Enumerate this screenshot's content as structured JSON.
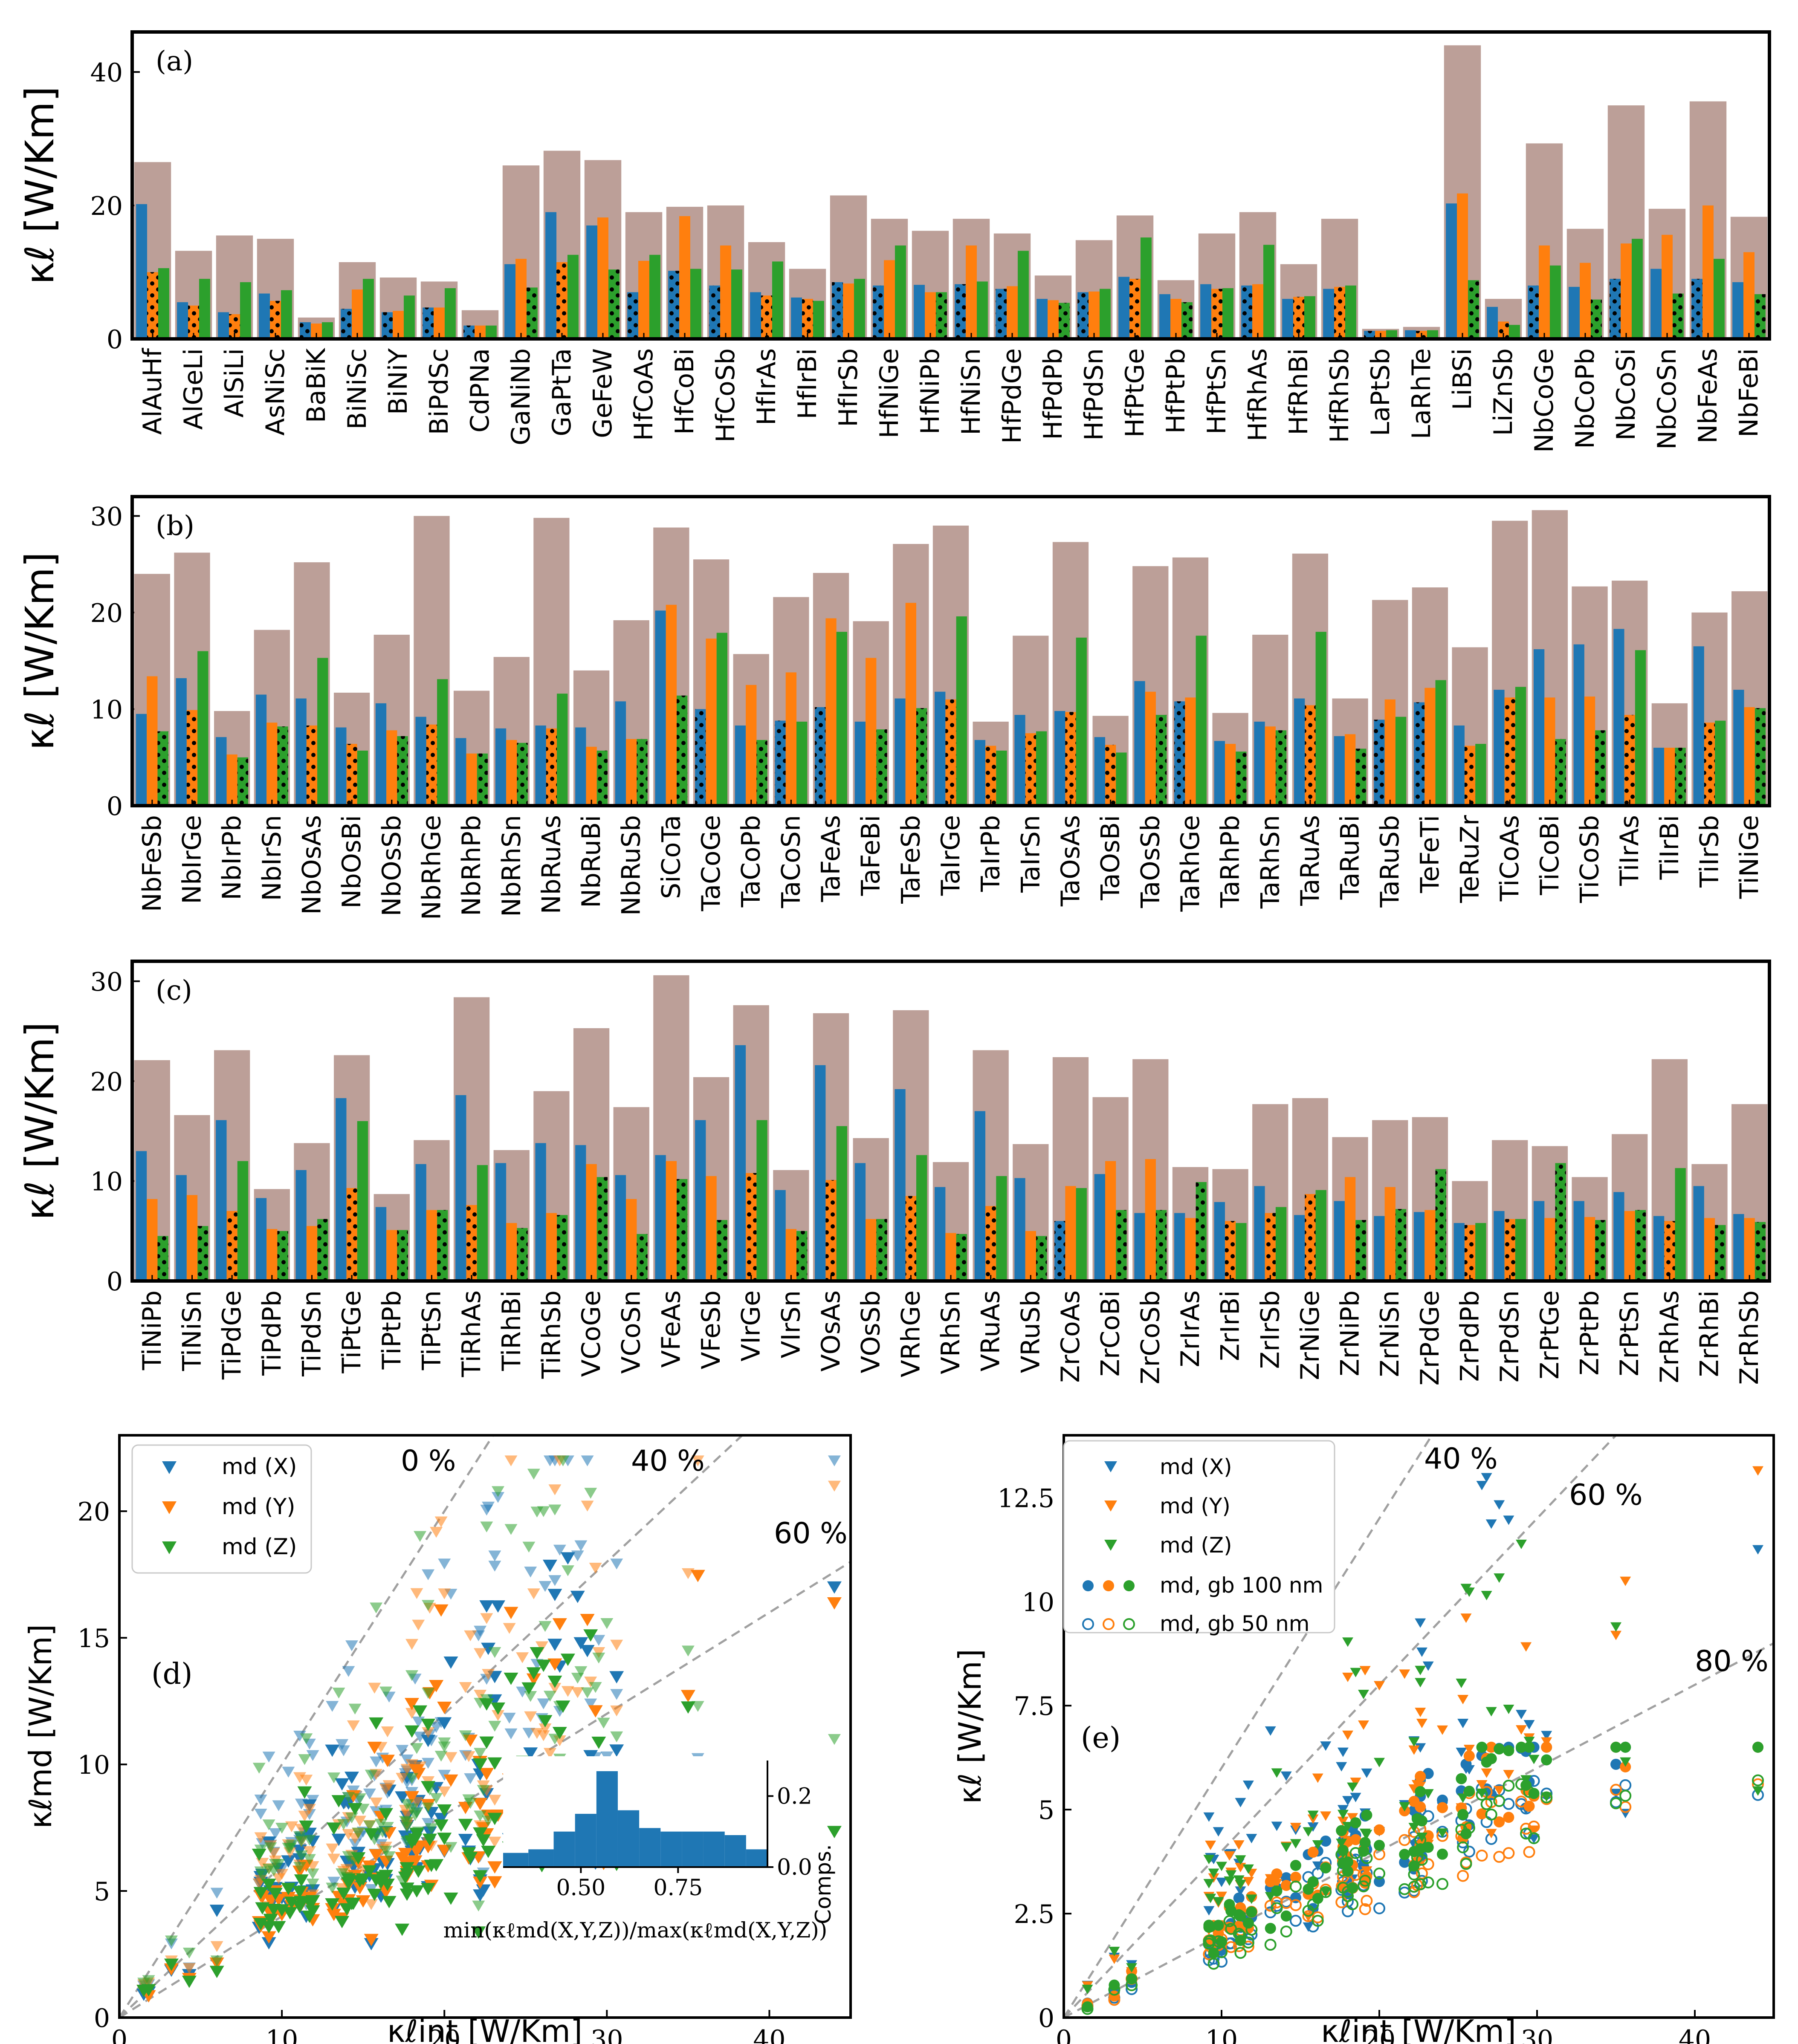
{
  "colors": {
    "total": "#bc9f98",
    "x": "#1f77b4",
    "y": "#ff7f0e",
    "z": "#2ca02c",
    "dash": "#a0a0a0",
    "axis": "#000000"
  },
  "chart_data": [
    {
      "type": "bar",
      "panel": "(a)",
      "ylabel": "κℓ [W/Km]",
      "ylim": [
        0,
        46
      ],
      "yticks": [
        0,
        20,
        40
      ],
      "series_names": [
        "κℓ int",
        "X",
        "Y",
        "Z"
      ],
      "categories": [
        "AlAuHf",
        "AlGeLi",
        "AlSiLi",
        "AsNiSc",
        "BaBiK",
        "BiNiSc",
        "BiNiY",
        "BiPdSc",
        "CdPNa",
        "GaNiNb",
        "GaPtTa",
        "GeFeW",
        "HfCoAs",
        "HfCoBi",
        "HfCoSb",
        "HfIrAs",
        "HfIrBi",
        "HfIrSb",
        "HfNiGe",
        "HfNiPb",
        "HfNiSn",
        "HfPdGe",
        "HfPdPb",
        "HfPdSn",
        "HfPtGe",
        "HfPtPb",
        "HfPtSn",
        "HfRhAs",
        "HfRhBi",
        "HfRhSb",
        "LaPtSb",
        "LaRhTe",
        "LiBSi",
        "LiZnSb",
        "NbCoGe",
        "NbCoPb",
        "NbCoSi",
        "NbCoSn",
        "NbFeAs",
        "NbFeBi"
      ],
      "total": [
        26.5,
        13.2,
        15.5,
        15.0,
        3.2,
        11.5,
        9.2,
        8.6,
        4.3,
        26.0,
        28.2,
        26.8,
        19.0,
        19.8,
        20.0,
        14.5,
        10.5,
        21.5,
        18.0,
        16.2,
        18.0,
        15.8,
        9.5,
        14.8,
        18.5,
        8.8,
        15.8,
        19.0,
        11.2,
        18.0,
        1.5,
        1.8,
        44.0,
        6.0,
        29.3,
        16.5,
        35.0,
        19.5,
        35.6,
        18.3
      ],
      "x": [
        20.2,
        5.5,
        4.0,
        6.8,
        2.5,
        4.5,
        4.0,
        4.7,
        2.0,
        11.2,
        19.0,
        17.0,
        7.0,
        10.2,
        8.0,
        7.0,
        6.2,
        8.5,
        8.0,
        8.1,
        8.2,
        7.5,
        6.0,
        7.0,
        9.3,
        6.7,
        8.2,
        8.0,
        6.0,
        7.5,
        1.2,
        1.3,
        20.3,
        4.8,
        8.0,
        7.8,
        9.0,
        10.5,
        9.0,
        8.5
      ],
      "y": [
        10.0,
        5.0,
        3.7,
        5.7,
        2.3,
        7.4,
        4.2,
        4.7,
        2.0,
        12.0,
        11.5,
        18.2,
        11.7,
        18.4,
        14.0,
        6.5,
        6.0,
        8.3,
        11.8,
        7.0,
        14.0,
        7.9,
        5.8,
        7.1,
        9.0,
        6.0,
        7.5,
        8.2,
        6.3,
        7.8,
        1.2,
        1.2,
        21.8,
        2.6,
        14.0,
        11.4,
        14.3,
        15.6,
        20.0,
        13.0
      ],
      "z": [
        10.6,
        9.0,
        8.5,
        7.3,
        2.5,
        9.0,
        6.5,
        7.6,
        2.0,
        7.7,
        12.6,
        10.4,
        12.6,
        10.5,
        10.4,
        11.6,
        5.7,
        9.0,
        14.0,
        7.0,
        8.6,
        13.2,
        5.4,
        7.5,
        15.2,
        5.5,
        7.6,
        14.1,
        6.4,
        8.0,
        1.3,
        1.3,
        8.8,
        2.1,
        11.0,
        5.9,
        15.0,
        6.8,
        12.0,
        6.7
      ],
      "dotted": [
        "y",
        "y",
        "y",
        "y",
        "x",
        "x",
        "x",
        "x",
        "x",
        "z",
        "y",
        "z",
        "x",
        "x",
        "x",
        "y",
        "y",
        "x",
        "x",
        "z",
        "x",
        "x",
        "z",
        "x",
        "y",
        "z",
        "y",
        "x",
        "y",
        "y",
        "x",
        "y",
        "z",
        "y",
        "x",
        "z",
        "x",
        "z",
        "x",
        "z"
      ]
    },
    {
      "type": "bar",
      "panel": "(b)",
      "ylabel": "κℓ [W/Km]",
      "ylim": [
        0,
        32
      ],
      "yticks": [
        0,
        10,
        20,
        30
      ],
      "series_names": [
        "κℓ int",
        "X",
        "Y",
        "Z"
      ],
      "categories": [
        "NbFeSb",
        "NbIrGe",
        "NbIrPb",
        "NbIrSn",
        "NbOsAs",
        "NbOsBi",
        "NbOsSb",
        "NbRhGe",
        "NbRhPb",
        "NbRhSn",
        "NbRuAs",
        "NbRuBi",
        "NbRuSb",
        "SiCoTa",
        "TaCoGe",
        "TaCoPb",
        "TaCoSn",
        "TaFeAs",
        "TaFeBi",
        "TaFeSb",
        "TaIrGe",
        "TaIrPb",
        "TaIrSn",
        "TaOsAs",
        "TaOsBi",
        "TaOsSb",
        "TaRhGe",
        "TaRhPb",
        "TaRhSn",
        "TaRuAs",
        "TaRuBi",
        "TaRuSb",
        "TeFeTi",
        "TeRuZr",
        "TiCoAs",
        "TiCoBi",
        "TiCoSb",
        "TiIrAs",
        "TiIrBi",
        "TiIrSb",
        "TiNiGe"
      ],
      "total": [
        24.0,
        26.2,
        9.8,
        18.2,
        25.2,
        11.7,
        17.7,
        30.0,
        11.9,
        15.4,
        29.8,
        14.0,
        19.2,
        28.8,
        25.5,
        15.7,
        21.6,
        24.1,
        19.1,
        27.1,
        29.0,
        8.7,
        17.6,
        27.3,
        9.3,
        24.8,
        25.7,
        9.6,
        17.7,
        26.1,
        11.1,
        21.3,
        22.6,
        16.4,
        29.5,
        30.6,
        22.7,
        23.3,
        10.6,
        20.0,
        22.2
      ],
      "x": [
        9.5,
        13.2,
        7.1,
        11.5,
        11.1,
        8.1,
        10.6,
        9.2,
        7.0,
        8.0,
        8.3,
        8.1,
        10.8,
        20.2,
        10.0,
        8.3,
        8.8,
        10.2,
        8.7,
        11.1,
        11.8,
        6.8,
        9.4,
        9.8,
        7.1,
        12.9,
        10.8,
        6.7,
        8.7,
        11.1,
        7.2,
        8.9,
        10.7,
        8.3,
        12.0,
        16.2,
        16.7,
        18.3,
        6.0,
        16.5,
        12.0
      ],
      "y": [
        13.4,
        9.9,
        5.3,
        8.6,
        8.3,
        6.4,
        7.8,
        8.4,
        5.4,
        6.8,
        8.0,
        6.1,
        6.9,
        20.8,
        17.3,
        12.5,
        13.8,
        19.4,
        15.3,
        21.0,
        11.0,
        6.2,
        7.5,
        9.7,
        6.3,
        11.8,
        11.2,
        6.4,
        8.2,
        10.4,
        7.4,
        11.0,
        12.2,
        6.2,
        11.2,
        11.2,
        11.3,
        9.4,
        6.0,
        8.6,
        10.2
      ],
      "z": [
        7.7,
        16.0,
        5.0,
        8.2,
        15.3,
        5.7,
        7.2,
        13.1,
        5.4,
        6.5,
        11.6,
        5.7,
        6.9,
        11.4,
        17.9,
        6.8,
        8.7,
        18.0,
        7.9,
        10.1,
        19.6,
        5.7,
        7.7,
        17.4,
        5.5,
        9.4,
        17.6,
        5.6,
        7.8,
        18.0,
        5.9,
        9.2,
        13.0,
        6.4,
        12.3,
        6.9,
        7.8,
        16.1,
        6.0,
        8.8,
        10.1
      ],
      "dotted": [
        "z",
        "y",
        "z",
        "z",
        "y",
        "y",
        "z",
        "y",
        "z",
        "z",
        "y",
        "z",
        "z",
        "z",
        "x",
        "z",
        "x",
        "x",
        "z",
        "z",
        "y",
        "y",
        "y",
        "y",
        "y",
        "z",
        "x",
        "z",
        "z",
        "y",
        "z",
        "x",
        "x",
        "y",
        "y",
        "z",
        "z",
        "y",
        "z",
        "y",
        "z"
      ]
    },
    {
      "type": "bar",
      "panel": "(c)",
      "ylabel": "κℓ [W/Km]",
      "ylim": [
        0,
        32
      ],
      "yticks": [
        0,
        10,
        20,
        30
      ],
      "series_names": [
        "κℓ int",
        "X",
        "Y",
        "Z"
      ],
      "categories": [
        "TiNiPb",
        "TiNiSn",
        "TiPdGe",
        "TiPdPb",
        "TiPdSn",
        "TiPtGe",
        "TiPtPb",
        "TiPtSn",
        "TiRhAs",
        "TiRhBi",
        "TiRhSb",
        "VCoGe",
        "VCoSn",
        "VFeAs",
        "VFeSb",
        "VIrGe",
        "VIrSn",
        "VOsAs",
        "VOsSb",
        "VRhGe",
        "VRhSn",
        "VRuAs",
        "VRuSb",
        "ZrCoAs",
        "ZrCoBi",
        "ZrCoSb",
        "ZrIrAs",
        "ZrIrBi",
        "ZrIrSb",
        "ZrNiGe",
        "ZrNiPb",
        "ZrNiSn",
        "ZrPdGe",
        "ZrPdPb",
        "ZrPdSn",
        "ZrPtGe",
        "ZrPtPb",
        "ZrPtSn",
        "ZrRhAs",
        "ZrRhBi",
        "ZrRhSb"
      ],
      "total": [
        22.1,
        16.6,
        23.1,
        9.2,
        13.8,
        22.6,
        8.7,
        14.1,
        28.4,
        13.1,
        19.0,
        25.3,
        17.4,
        30.6,
        20.4,
        27.6,
        11.1,
        26.8,
        14.3,
        27.1,
        11.9,
        23.1,
        13.7,
        22.4,
        18.4,
        22.2,
        11.4,
        11.2,
        17.7,
        18.3,
        14.4,
        16.1,
        16.4,
        10.0,
        14.1,
        13.5,
        10.4,
        14.7,
        22.2,
        11.7,
        17.7
      ],
      "x": [
        13.0,
        10.6,
        16.1,
        8.3,
        11.1,
        18.3,
        7.4,
        11.7,
        18.6,
        11.8,
        13.8,
        13.6,
        10.6,
        12.6,
        16.1,
        23.6,
        9.1,
        21.6,
        11.8,
        19.2,
        9.4,
        17.0,
        10.3,
        6.0,
        10.7,
        6.8,
        6.8,
        7.9,
        9.5,
        6.6,
        8.0,
        6.5,
        6.9,
        5.8,
        7.0,
        8.0,
        8.0,
        8.9,
        6.5,
        9.5,
        6.7
      ],
      "y": [
        8.2,
        8.6,
        7.0,
        5.2,
        5.5,
        9.3,
        5.1,
        7.1,
        7.6,
        5.8,
        6.8,
        11.7,
        8.2,
        12.0,
        10.5,
        10.8,
        5.2,
        10.1,
        6.2,
        8.5,
        4.8,
        7.5,
        5.0,
        9.5,
        12.0,
        12.2,
        6.3,
        6.0,
        6.8,
        8.7,
        10.4,
        9.4,
        7.1,
        5.6,
        6.2,
        6.3,
        6.4,
        7.0,
        6.0,
        6.3,
        6.3
      ],
      "z": [
        4.5,
        5.5,
        12.0,
        5.0,
        6.2,
        16.0,
        5.1,
        7.1,
        11.6,
        5.3,
        6.6,
        10.4,
        4.7,
        10.2,
        6.1,
        16.1,
        5.0,
        15.5,
        6.2,
        12.6,
        4.7,
        10.5,
        4.5,
        9.3,
        7.1,
        7.1,
        9.9,
        5.8,
        7.4,
        9.1,
        6.1,
        7.2,
        11.2,
        5.8,
        6.2,
        11.8,
        6.1,
        7.1,
        11.3,
        5.6,
        5.9
      ],
      "dotted": [
        "z",
        "z",
        "y",
        "z",
        "z",
        "y",
        "z",
        "z",
        "y",
        "z",
        "z",
        "z",
        "z",
        "z",
        "z",
        "y",
        "z",
        "y",
        "z",
        "y",
        "z",
        "y",
        "z",
        "x",
        "z",
        "z",
        "z",
        "y",
        "y",
        "y",
        "z",
        "z",
        "z",
        "y",
        "y",
        "z",
        "z",
        "z",
        "y",
        "z",
        "z"
      ]
    },
    {
      "type": "scatter",
      "panel": "(d)",
      "xlabel": "κℓint [W/Km]",
      "ylabel": "κℓmd [W/Km]",
      "xlim": [
        0,
        45
      ],
      "ylim": [
        0,
        23
      ],
      "xticks": [
        0,
        10,
        20,
        30,
        40
      ],
      "yticks": [
        0,
        5,
        10,
        15,
        20
      ],
      "legend": [
        "md (X)",
        "md (Y)",
        "md (Z)"
      ],
      "reference_lines": [
        {
          "label": "0 %",
          "slope": 1.0
        },
        {
          "label": "40 %",
          "slope": 0.6
        },
        {
          "label": "60 %",
          "slope": 0.4
        }
      ],
      "inset": {
        "type": "histogram",
        "xlabel": "min(κℓmd(X,Y,Z))/max(κℓmd(X,Y,Z))",
        "ylabel": "Comps.",
        "xticks": [
          "0.50",
          "0.75"
        ],
        "yticks": [
          "0.0",
          "0.2"
        ],
        "bins": [
          0.3,
          0.365,
          0.43,
          0.485,
          0.54,
          0.595,
          0.65,
          0.705,
          0.76,
          0.815,
          0.87,
          0.925,
          0.98
        ],
        "values": [
          0.04,
          0.05,
          0.1,
          0.15,
          0.27,
          0.16,
          0.11,
          0.1,
          0.1,
          0.1,
          0.09,
          0.05
        ]
      }
    },
    {
      "type": "scatter",
      "panel": "(e)",
      "xlabel": "κℓint [W/Km]",
      "ylabel": "κℓ [W/Km]",
      "xlim": [
        0,
        45
      ],
      "ylim": [
        0,
        14
      ],
      "xticks": [
        0,
        10,
        20,
        30,
        40
      ],
      "yticks": [
        0.0,
        2.5,
        5.0,
        7.5,
        10.0,
        12.5
      ],
      "legend": [
        "md (X)",
        "md (Y)",
        "md (Z)",
        "md, gb 100 nm",
        "md, gb 50 nm"
      ],
      "reference_lines": [
        {
          "label": "40 %",
          "slope": 0.6
        },
        {
          "label": "60 %",
          "slope": 0.4
        },
        {
          "label": "80 %",
          "slope": 0.2
        }
      ]
    }
  ]
}
